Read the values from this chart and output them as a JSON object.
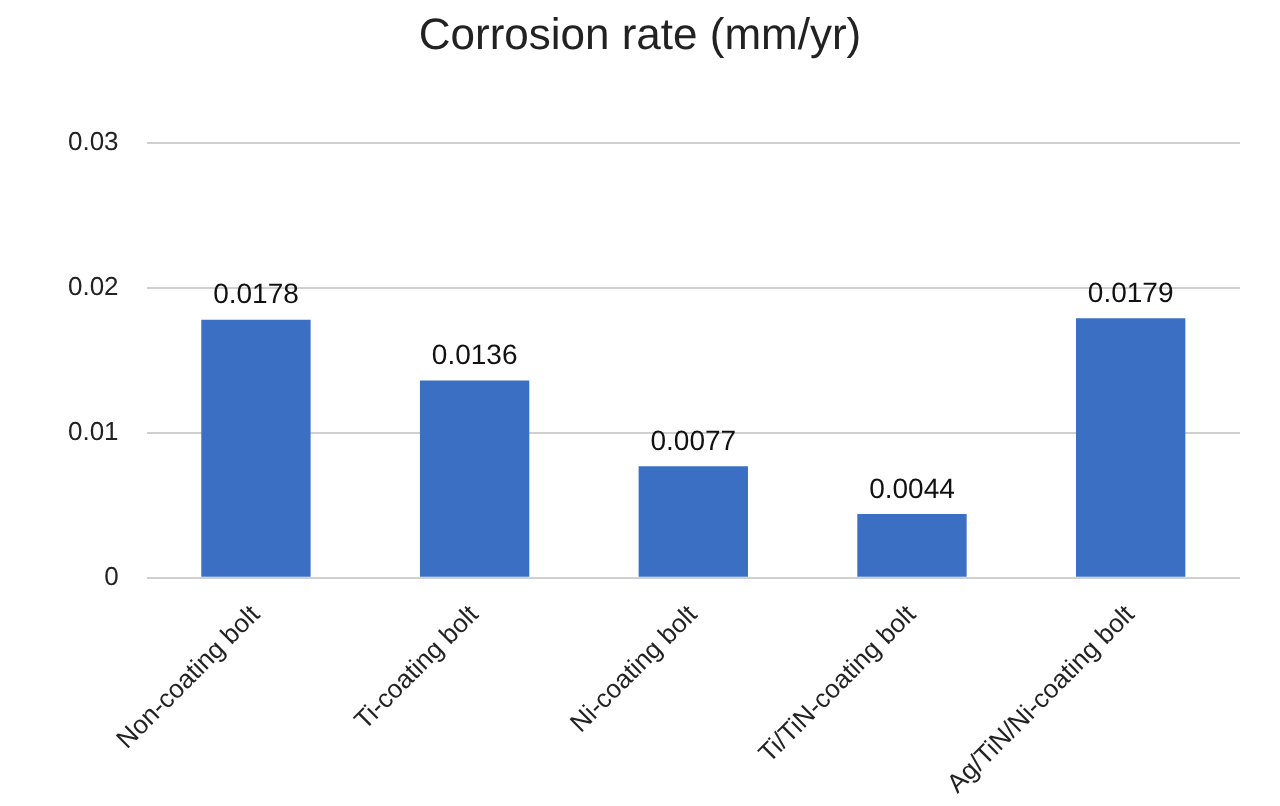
{
  "chart_data": {
    "type": "bar",
    "title": "Corrosion rate (mm/yr)",
    "categories": [
      "Non-coating bolt",
      "Ti-coating bolt",
      "Ni-coating bolt",
      "Ti/TiN-coating bolt",
      "Ag/TiN/Ni-coating bolt"
    ],
    "values": [
      0.0178,
      0.0136,
      0.0077,
      0.0044,
      0.0179
    ],
    "color": "#3b6fc4",
    "ylim": [
      0,
      0.03
    ],
    "yticks": [
      0,
      0.01,
      0.02,
      0.03
    ],
    "grid": "y",
    "data_labels": true,
    "legend": false
  }
}
